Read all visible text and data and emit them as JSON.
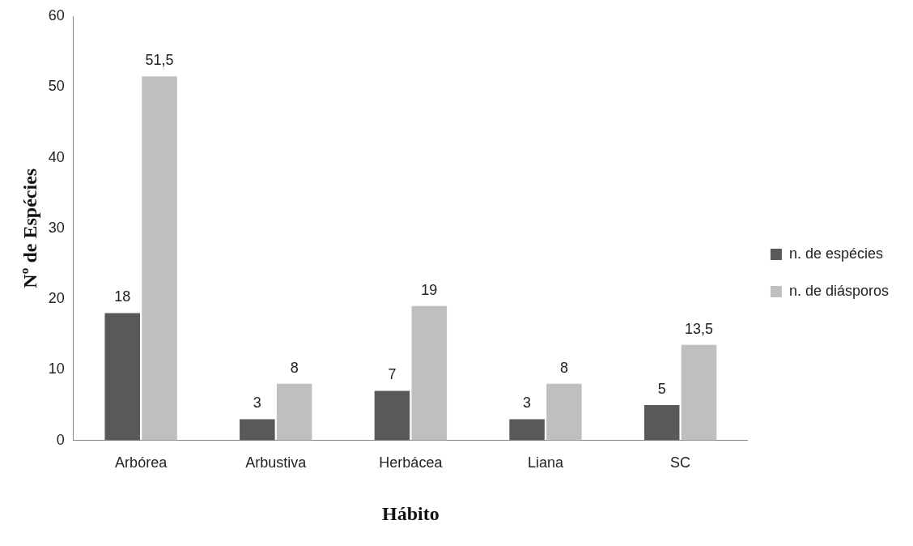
{
  "chart_data": {
    "type": "bar",
    "xlabel": "Hábito",
    "ylabel": "Nº de Espécies",
    "categories": [
      "Arbórea",
      "Arbustiva",
      "Herbácea",
      "Liana",
      "SC"
    ],
    "series": [
      {
        "name": "n. de espécies",
        "color": "#595959",
        "values": [
          18,
          3,
          7,
          3,
          5
        ],
        "value_labels": [
          "18",
          "3",
          "7",
          "3",
          "5"
        ]
      },
      {
        "name": "n. de diásporos",
        "color": "#bfbfbf",
        "values": [
          51.5,
          8,
          19,
          8,
          13.5
        ],
        "value_labels": [
          "51,5",
          "8",
          "19",
          "8",
          "13,5"
        ]
      }
    ],
    "ylim": [
      0,
      60
    ],
    "yticks": [
      0,
      10,
      20,
      30,
      40,
      50,
      60
    ],
    "grid": false,
    "legend": "right"
  }
}
